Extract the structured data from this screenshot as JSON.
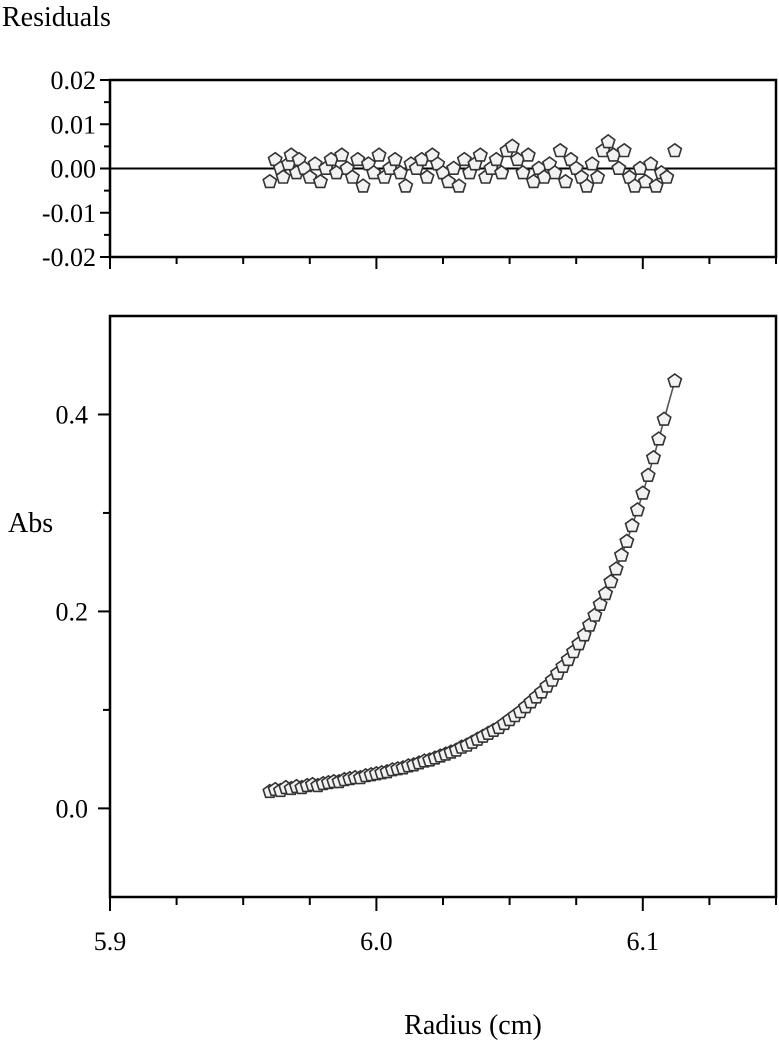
{
  "chart_data": [
    {
      "type": "scatter",
      "ylabel": "Residuals",
      "xlim": [
        5.9,
        6.15
      ],
      "ylim": [
        -0.02,
        0.02
      ],
      "y_ticks": [
        0.02,
        0.01,
        0.0,
        -0.01,
        -0.02
      ],
      "y_tick_labels": [
        "0.02",
        "0.01",
        "0.00",
        "-0.01",
        "-0.02"
      ],
      "reference_line_y": 0,
      "marker": "open-pentagon",
      "series": [
        {
          "x": [
            5.96,
            5.962,
            5.964,
            5.965,
            5.967,
            5.968,
            5.97,
            5.971,
            5.973,
            5.975,
            5.977,
            5.979,
            5.981,
            5.983,
            5.985,
            5.987,
            5.989,
            5.991,
            5.993,
            5.995,
            5.997,
            5.999,
            6.001,
            6.003,
            6.005,
            6.007,
            6.009,
            6.011,
            6.013,
            6.015,
            6.017,
            6.019,
            6.021,
            6.023,
            6.025,
            6.027,
            6.029,
            6.031,
            6.033,
            6.035,
            6.037,
            6.039,
            6.041,
            6.043,
            6.045,
            6.047,
            6.049,
            6.051,
            6.053,
            6.055,
            6.057,
            6.059,
            6.061,
            6.063,
            6.065,
            6.067,
            6.069,
            6.071,
            6.073,
            6.075,
            6.077,
            6.079,
            6.081,
            6.083,
            6.085,
            6.087,
            6.089,
            6.091,
            6.093,
            6.095,
            6.097,
            6.099,
            6.101,
            6.103,
            6.105,
            6.107,
            6.109,
            6.112
          ],
          "y": [
            -0.003,
            0.002,
            0.0,
            -0.002,
            0.001,
            0.003,
            -0.001,
            0.002,
            0.0,
            -0.002,
            0.001,
            -0.003,
            0.0,
            0.002,
            -0.001,
            0.003,
            0.0,
            -0.002,
            0.002,
            -0.004,
            0.001,
            -0.001,
            0.003,
            -0.002,
            0.0,
            0.002,
            -0.001,
            -0.004,
            0.001,
            0.0,
            0.002,
            -0.002,
            0.003,
            0.001,
            -0.001,
            -0.003,
            0.0,
            -0.004,
            0.002,
            -0.001,
            0.001,
            0.003,
            -0.002,
            0.0,
            0.002,
            -0.001,
            0.004,
            0.005,
            0.002,
            -0.001,
            0.003,
            -0.003,
            0.0,
            -0.002,
            0.001,
            -0.001,
            0.004,
            -0.003,
            0.002,
            0.0,
            -0.002,
            -0.004,
            0.001,
            -0.002,
            0.004,
            0.006,
            0.003,
            0.0,
            0.004,
            -0.002,
            -0.004,
            0.0,
            -0.003,
            0.001,
            -0.004,
            -0.001,
            -0.002,
            0.004
          ]
        }
      ]
    },
    {
      "type": "scatter",
      "xlabel": "Radius (cm)",
      "ylabel": "Abs",
      "xlim": [
        5.9,
        6.15
      ],
      "ylim": [
        -0.09,
        0.5
      ],
      "x_ticks": [
        5.9,
        6.0,
        6.1
      ],
      "x_tick_labels": [
        "5.9",
        "6.0",
        "6.1"
      ],
      "y_ticks": [
        0.0,
        0.2,
        0.4
      ],
      "y_tick_labels": [
        "0.0",
        "0.2",
        "0.4"
      ],
      "marker": "open-pentagon",
      "fit_line": true,
      "series": [
        {
          "x": [
            5.96,
            5.962,
            5.964,
            5.966,
            5.968,
            5.97,
            5.972,
            5.974,
            5.976,
            5.978,
            5.98,
            5.982,
            5.984,
            5.986,
            5.988,
            5.99,
            5.992,
            5.994,
            5.996,
            5.998,
            6.0,
            6.002,
            6.004,
            6.006,
            6.008,
            6.01,
            6.012,
            6.014,
            6.016,
            6.018,
            6.02,
            6.022,
            6.024,
            6.026,
            6.028,
            6.03,
            6.032,
            6.034,
            6.036,
            6.038,
            6.04,
            6.042,
            6.044,
            6.046,
            6.048,
            6.05,
            6.052,
            6.054,
            6.056,
            6.058,
            6.06,
            6.062,
            6.064,
            6.066,
            6.068,
            6.07,
            6.072,
            6.074,
            6.076,
            6.078,
            6.08,
            6.082,
            6.084,
            6.086,
            6.088,
            6.09,
            6.092,
            6.094,
            6.096,
            6.098,
            6.1,
            6.102,
            6.104,
            6.106,
            6.108,
            6.112
          ],
          "y": [
            0.017,
            0.019,
            0.018,
            0.021,
            0.02,
            0.022,
            0.021,
            0.023,
            0.024,
            0.023,
            0.025,
            0.026,
            0.027,
            0.027,
            0.029,
            0.03,
            0.031,
            0.031,
            0.033,
            0.034,
            0.035,
            0.036,
            0.037,
            0.039,
            0.04,
            0.041,
            0.043,
            0.044,
            0.046,
            0.048,
            0.049,
            0.051,
            0.053,
            0.055,
            0.057,
            0.059,
            0.062,
            0.064,
            0.067,
            0.07,
            0.073,
            0.076,
            0.079,
            0.082,
            0.086,
            0.09,
            0.094,
            0.098,
            0.103,
            0.108,
            0.113,
            0.118,
            0.124,
            0.13,
            0.137,
            0.144,
            0.151,
            0.159,
            0.167,
            0.176,
            0.186,
            0.196,
            0.207,
            0.218,
            0.23,
            0.243,
            0.257,
            0.271,
            0.287,
            0.303,
            0.32,
            0.338,
            0.356,
            0.375,
            0.395,
            0.434
          ]
        }
      ]
    }
  ]
}
